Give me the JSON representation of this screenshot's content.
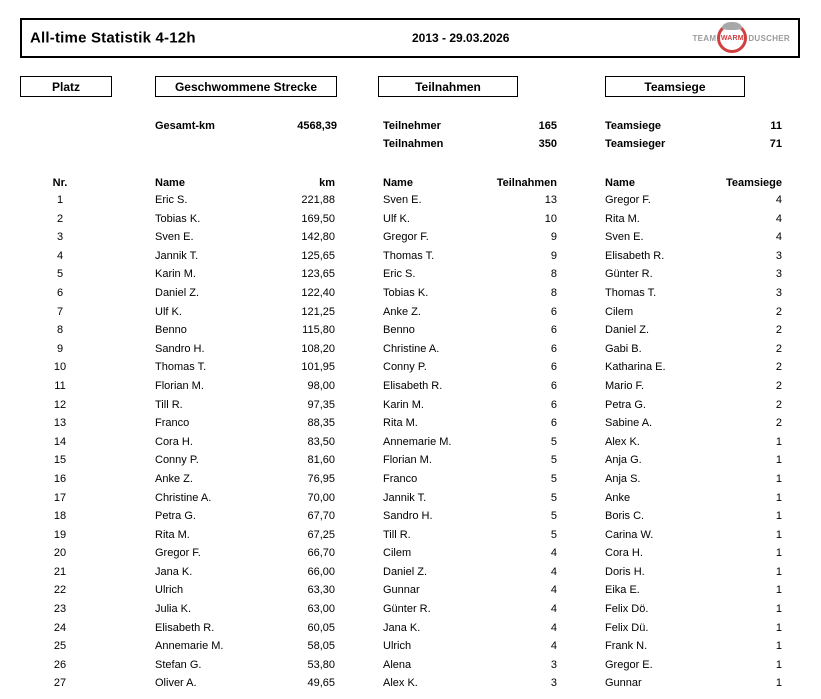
{
  "header": {
    "title": "All-time Statistik 4-12h",
    "date_range": "2013 - 29.03.2026",
    "logo": {
      "team": "TEAM",
      "warm": "WARM",
      "duscher": "DUSCHER",
      "accent_color": "#d04040",
      "gray_color": "#9a9a9a"
    }
  },
  "sections": {
    "platz": "Platz",
    "strecke": "Geschwommene Strecke",
    "teilnahmen": "Teilnahmen",
    "teamsiege": "Teamsiege"
  },
  "summary": {
    "strecke": {
      "label": "Gesamt-km",
      "value": "4568,39"
    },
    "teilnahmen": [
      {
        "label": "Teilnehmer",
        "value": "165"
      },
      {
        "label": "Teilnahmen",
        "value": "350"
      }
    ],
    "teamsiege": [
      {
        "label": "Teamsiege",
        "value": "11"
      },
      {
        "label": "Teamsieger",
        "value": "71"
      }
    ]
  },
  "table": {
    "headers": {
      "nr": "Nr.",
      "name": "Name",
      "km": "km",
      "teilnahmen": "Teilnahmen",
      "teamsiege": "Teamsiege"
    },
    "rows": [
      {
        "nr": "1",
        "km_name": "Eric S.",
        "km": "221,88",
        "t_name": "Sven E.",
        "t": "13",
        "s_name": "Gregor F.",
        "s": "4"
      },
      {
        "nr": "2",
        "km_name": "Tobias K.",
        "km": "169,50",
        "t_name": "Ulf K.",
        "t": "10",
        "s_name": "Rita M.",
        "s": "4"
      },
      {
        "nr": "3",
        "km_name": "Sven E.",
        "km": "142,80",
        "t_name": "Gregor F.",
        "t": "9",
        "s_name": "Sven E.",
        "s": "4"
      },
      {
        "nr": "4",
        "km_name": "Jannik T.",
        "km": "125,65",
        "t_name": "Thomas T.",
        "t": "9",
        "s_name": "Elisabeth R.",
        "s": "3"
      },
      {
        "nr": "5",
        "km_name": "Karin M.",
        "km": "123,65",
        "t_name": "Eric S.",
        "t": "8",
        "s_name": "Günter R.",
        "s": "3"
      },
      {
        "nr": "6",
        "km_name": "Daniel Z.",
        "km": "122,40",
        "t_name": "Tobias K.",
        "t": "8",
        "s_name": "Thomas T.",
        "s": "3"
      },
      {
        "nr": "7",
        "km_name": "Ulf K.",
        "km": "121,25",
        "t_name": "Anke Z.",
        "t": "6",
        "s_name": "Cilem",
        "s": "2"
      },
      {
        "nr": "8",
        "km_name": "Benno",
        "km": "115,80",
        "t_name": "Benno",
        "t": "6",
        "s_name": "Daniel Z.",
        "s": "2"
      },
      {
        "nr": "9",
        "km_name": "Sandro H.",
        "km": "108,20",
        "t_name": "Christine A.",
        "t": "6",
        "s_name": "Gabi B.",
        "s": "2"
      },
      {
        "nr": "10",
        "km_name": "Thomas T.",
        "km": "101,95",
        "t_name": "Conny P.",
        "t": "6",
        "s_name": "Katharina E.",
        "s": "2"
      },
      {
        "nr": "11",
        "km_name": "Florian M.",
        "km": "98,00",
        "t_name": "Elisabeth R.",
        "t": "6",
        "s_name": "Mario F.",
        "s": "2"
      },
      {
        "nr": "12",
        "km_name": "Till R.",
        "km": "97,35",
        "t_name": "Karin M.",
        "t": "6",
        "s_name": "Petra G.",
        "s": "2"
      },
      {
        "nr": "13",
        "km_name": "Franco",
        "km": "88,35",
        "t_name": "Rita M.",
        "t": "6",
        "s_name": "Sabine A.",
        "s": "2"
      },
      {
        "nr": "14",
        "km_name": "Cora H.",
        "km": "83,50",
        "t_name": "Annemarie M.",
        "t": "5",
        "s_name": "Alex K.",
        "s": "1"
      },
      {
        "nr": "15",
        "km_name": "Conny P.",
        "km": "81,60",
        "t_name": "Florian M.",
        "t": "5",
        "s_name": "Anja G.",
        "s": "1"
      },
      {
        "nr": "16",
        "km_name": "Anke Z.",
        "km": "76,95",
        "t_name": "Franco",
        "t": "5",
        "s_name": "Anja S.",
        "s": "1"
      },
      {
        "nr": "17",
        "km_name": "Christine A.",
        "km": "70,00",
        "t_name": "Jannik T.",
        "t": "5",
        "s_name": "Anke",
        "s": "1"
      },
      {
        "nr": "18",
        "km_name": "Petra G.",
        "km": "67,70",
        "t_name": "Sandro H.",
        "t": "5",
        "s_name": "Boris C.",
        "s": "1"
      },
      {
        "nr": "19",
        "km_name": "Rita M.",
        "km": "67,25",
        "t_name": "Till R.",
        "t": "5",
        "s_name": "Carina W.",
        "s": "1"
      },
      {
        "nr": "20",
        "km_name": "Gregor F.",
        "km": "66,70",
        "t_name": "Cilem",
        "t": "4",
        "s_name": "Cora H.",
        "s": "1"
      },
      {
        "nr": "21",
        "km_name": "Jana K.",
        "km": "66,00",
        "t_name": "Daniel Z.",
        "t": "4",
        "s_name": "Doris H.",
        "s": "1"
      },
      {
        "nr": "22",
        "km_name": "Ulrich",
        "km": "63,30",
        "t_name": "Gunnar",
        "t": "4",
        "s_name": "Eika E.",
        "s": "1"
      },
      {
        "nr": "23",
        "km_name": "Julia K.",
        "km": "63,00",
        "t_name": "Günter R.",
        "t": "4",
        "s_name": "Felix Dö.",
        "s": "1"
      },
      {
        "nr": "24",
        "km_name": "Elisabeth R.",
        "km": "60,05",
        "t_name": "Jana K.",
        "t": "4",
        "s_name": "Felix Dü.",
        "s": "1"
      },
      {
        "nr": "25",
        "km_name": "Annemarie M.",
        "km": "58,05",
        "t_name": "Ulrich",
        "t": "4",
        "s_name": "Frank N.",
        "s": "1"
      },
      {
        "nr": "26",
        "km_name": "Stefan G.",
        "km": "53,80",
        "t_name": "Alena",
        "t": "3",
        "s_name": "Gregor E.",
        "s": "1"
      },
      {
        "nr": "27",
        "km_name": "Oliver A.",
        "km": "49,65",
        "t_name": "Alex K.",
        "t": "3",
        "s_name": "Gunnar",
        "s": "1"
      }
    ]
  }
}
